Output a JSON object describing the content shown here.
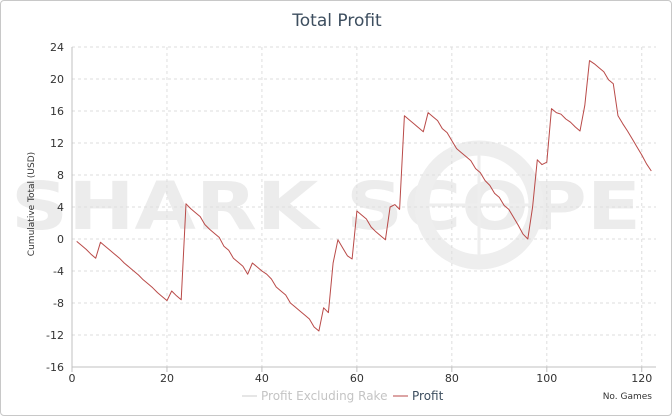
{
  "chart_data": {
    "type": "line",
    "title": "Total Profit",
    "xlabel": "No. Games",
    "ylabel": "Cumulative Total (USD)",
    "xlim": [
      0,
      123
    ],
    "ylim": [
      -16,
      24
    ],
    "x_ticks": [
      0,
      20,
      40,
      60,
      80,
      100,
      120
    ],
    "y_ticks": [
      24,
      20,
      16,
      12,
      8,
      4,
      0,
      -4,
      -8,
      -12,
      -16
    ],
    "grid": true,
    "legend_position": "bottom-right",
    "watermark": "SHARK SCOPE",
    "series": [
      {
        "name": "Profit Excluding Rake",
        "color": "#cccccc",
        "x": [],
        "y": []
      },
      {
        "name": "Profit",
        "color": "#b94a48",
        "x": [
          1,
          2,
          3,
          4,
          5,
          6,
          7,
          8,
          9,
          10,
          11,
          12,
          13,
          14,
          15,
          16,
          17,
          18,
          19,
          20,
          21,
          22,
          23,
          24,
          25,
          26,
          27,
          28,
          29,
          30,
          31,
          32,
          33,
          34,
          35,
          36,
          37,
          38,
          39,
          40,
          41,
          42,
          43,
          44,
          45,
          46,
          47,
          48,
          49,
          50,
          51,
          52,
          53,
          54,
          55,
          56,
          57,
          58,
          59,
          60,
          61,
          62,
          63,
          64,
          65,
          66,
          67,
          68,
          69,
          70,
          71,
          72,
          73,
          74,
          75,
          76,
          77,
          78,
          79,
          80,
          81,
          82,
          83,
          84,
          85,
          86,
          87,
          88,
          89,
          90,
          91,
          92,
          93,
          94,
          95,
          96,
          97,
          98,
          99,
          100,
          101,
          102,
          103,
          104,
          105,
          106,
          107,
          108,
          109,
          110,
          111,
          112,
          113,
          114,
          115,
          116,
          117,
          118,
          119,
          120,
          121,
          122
        ],
        "y": [
          -0.3,
          -0.8,
          -1.3,
          -1.9,
          -2.4,
          -0.4,
          -0.9,
          -1.4,
          -1.9,
          -2.4,
          -3.0,
          -3.5,
          -4.0,
          -4.5,
          -5.1,
          -5.6,
          -6.1,
          -6.7,
          -7.2,
          -7.7,
          -6.5,
          -7.1,
          -7.6,
          4.4,
          3.8,
          3.3,
          2.8,
          1.8,
          1.2,
          0.7,
          0.2,
          -0.9,
          -1.4,
          -2.4,
          -2.9,
          -3.4,
          -4.4,
          -3.0,
          -3.5,
          -4.0,
          -4.4,
          -5.0,
          -6.0,
          -6.5,
          -7.0,
          -8.0,
          -8.5,
          -9.0,
          -9.5,
          -10.0,
          -11.0,
          -11.5,
          -8.6,
          -9.2,
          -3.0,
          -0.1,
          -1.1,
          -2.1,
          -2.5,
          3.5,
          3.0,
          2.5,
          1.5,
          0.9,
          0.4,
          -0.1,
          4.0,
          4.3,
          3.7,
          15.4,
          14.9,
          14.4,
          13.9,
          13.4,
          15.8,
          15.3,
          14.8,
          13.8,
          13.3,
          12.3,
          11.3,
          10.8,
          10.3,
          9.8,
          8.8,
          8.3,
          7.3,
          6.7,
          5.7,
          5.2,
          4.2,
          3.7,
          2.7,
          1.7,
          0.6,
          0.0,
          4.0,
          9.9,
          9.3,
          9.6,
          16.3,
          15.8,
          15.6,
          15.0,
          14.6,
          14.0,
          13.5,
          16.7,
          22.3,
          21.9,
          21.4,
          20.9,
          19.9,
          19.4,
          15.4,
          14.4,
          13.5,
          12.5,
          11.5,
          10.5,
          9.4,
          8.5
        ]
      }
    ]
  }
}
